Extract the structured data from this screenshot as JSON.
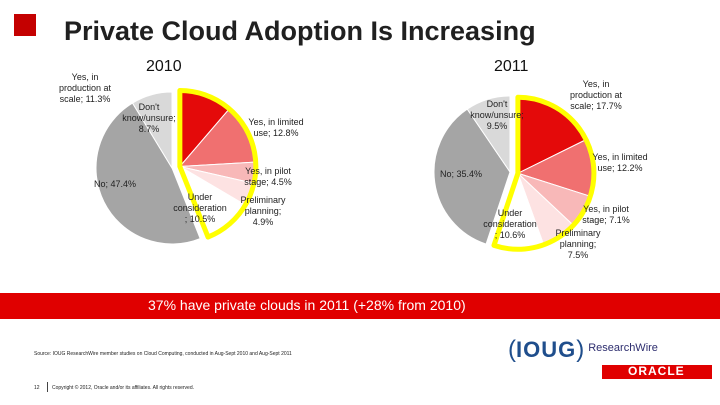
{
  "slide": {
    "title": "Private Cloud Adoption Is Increasing",
    "banner": "37% have private clouds in 2011   (+28% from 2010)",
    "source": "Source: IOUG ResearchWire member studies on Cloud Computing, conducted in Aug-Sept 2010 and Aug-Sept 2011",
    "page_number": "12",
    "copyright": "Copyright © 2012, Oracle and/or its affiliates. All rights reserved.",
    "logo_ioug": "IOUG",
    "logo_researchwire": "ResearchWire",
    "logo_oracle": "ORACLE"
  },
  "colors": {
    "yes_in_production": "#e40a0a",
    "yes_limited": "#f07070",
    "yes_pilot": "#f8b8b8",
    "preliminary": "#fde2e2",
    "under_consideration": "#ffffff",
    "no": "#a5a5a5",
    "dont_know": "#d9d9d9",
    "highlight": "#ffff00",
    "banner": "#e00000",
    "title_square": "#c40000"
  },
  "chart_data": [
    {
      "type": "pie",
      "title": "2010",
      "slices": [
        {
          "label": "Yes, in production at scale; 11.3%",
          "value": 11.3,
          "color": "#e40a0a"
        },
        {
          "label": "Yes, in limited use; 12.8%",
          "value": 12.8,
          "color": "#f07070"
        },
        {
          "label": "Yes, in pilot stage; 4.5%",
          "value": 4.5,
          "color": "#f8b8b8"
        },
        {
          "label": "Preliminary planning; 4.9%",
          "value": 4.9,
          "color": "#fde2e2"
        },
        {
          "label": "Under consideration ; 10.5%",
          "value": 10.5,
          "color": "#ffffff"
        },
        {
          "label": "No; 47.4%",
          "value": 47.4,
          "color": "#a5a5a5"
        },
        {
          "label": "Don't know/unsure; 8.7%",
          "value": 8.7,
          "color": "#d9d9d9"
        }
      ]
    },
    {
      "type": "pie",
      "title": "2011",
      "slices": [
        {
          "label": "Yes, in production at scale; 17.7%",
          "value": 17.7,
          "color": "#e40a0a"
        },
        {
          "label": "Yes, in limited use; 12.2%",
          "value": 12.2,
          "color": "#f07070"
        },
        {
          "label": "Yes, in pilot stage; 7.1%",
          "value": 7.1,
          "color": "#f8b8b8"
        },
        {
          "label": "Preliminary planning; 7.5%",
          "value": 7.5,
          "color": "#fde2e2"
        },
        {
          "label": "Under consideration ; 10.6%",
          "value": 10.6,
          "color": "#ffffff"
        },
        {
          "label": "No; 35.4%",
          "value": 35.4,
          "color": "#a5a5a5"
        },
        {
          "label": "Don't know/unsure; 9.5%",
          "value": 9.5,
          "color": "#d9d9d9"
        }
      ]
    }
  ]
}
